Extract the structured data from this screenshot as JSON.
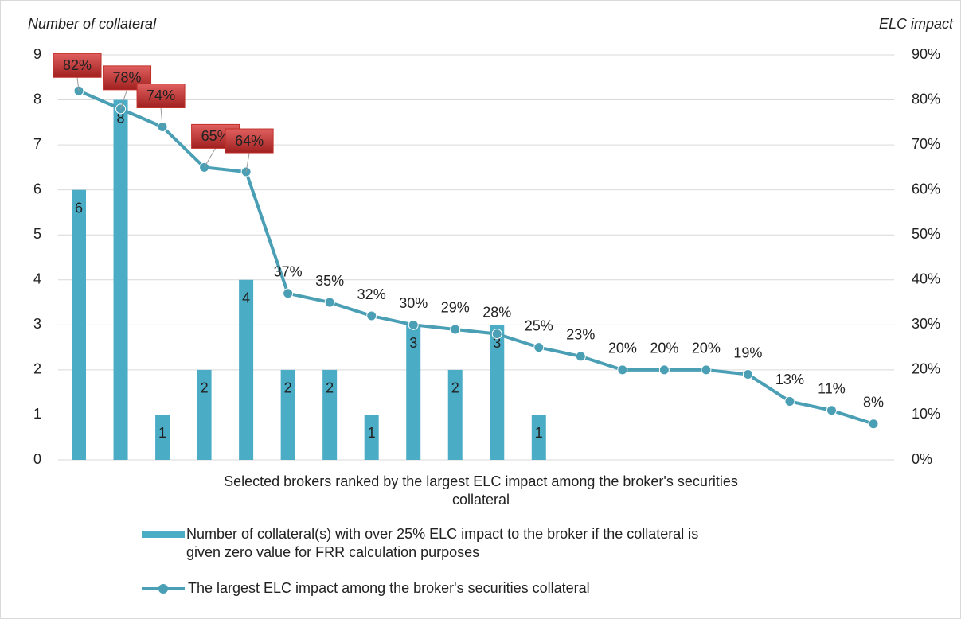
{
  "chart_data": {
    "type": "bar_line",
    "y_label": "Number of collateral",
    "y2_label": "ELC impact",
    "x_label": [
      "Selected brokers ranked by the largest ELC impact among the broker's securities",
      "collateral"
    ],
    "categories": [
      null,
      null,
      null,
      null,
      null,
      null,
      null,
      null,
      null,
      null,
      null,
      null,
      null,
      null,
      null,
      null,
      null,
      null,
      null,
      null
    ],
    "series": [
      {
        "name": [
          "Number of collateral(s) with over 25% ELC impact to the broker if the collateral is",
          "given zero value for FRR calculation purposes"
        ],
        "type": "bar",
        "color": "#4bacc6",
        "values": [
          6,
          8,
          1,
          2,
          4,
          2,
          2,
          1,
          3,
          2,
          3,
          1,
          null,
          null,
          null,
          null,
          null,
          null,
          null,
          null
        ]
      },
      {
        "name": "The largest ELC impact among the broker's securities collateral",
        "type": "line",
        "axis": "y2",
        "color": "#4a9fb5",
        "values": [
          82,
          78,
          74,
          65,
          64,
          37,
          35,
          32,
          30,
          29,
          28,
          25,
          23,
          20,
          20,
          20,
          19,
          13,
          11,
          8
        ],
        "value_labels": [
          "82%",
          "78%",
          "74%",
          "65%",
          "64%",
          "37%",
          "35%",
          "32%",
          "30%",
          "29%",
          "28%",
          "25%",
          "23%",
          "20%",
          "20%",
          "20%",
          "19%",
          "13%",
          "11%",
          "8%"
        ],
        "callouts": [
          true,
          true,
          true,
          true,
          true,
          false,
          false,
          false,
          false,
          false,
          false,
          false,
          false,
          false,
          false,
          false,
          false,
          false,
          false,
          false
        ],
        "callout_color": "#c0302b"
      }
    ],
    "ylim": [
      0,
      9
    ],
    "yticks": [
      0,
      1,
      2,
      3,
      4,
      5,
      6,
      7,
      8,
      9
    ],
    "y2lim": [
      0,
      90
    ],
    "y2ticks": [
      {
        "value": 0,
        "label": "0%"
      },
      {
        "value": 10,
        "label": "10%"
      },
      {
        "value": 20,
        "label": "20%"
      },
      {
        "value": 30,
        "label": "30%"
      },
      {
        "value": 40,
        "label": "40%"
      },
      {
        "value": 50,
        "label": "50%"
      },
      {
        "value": 60,
        "label": "60%"
      },
      {
        "value": 70,
        "label": "70%"
      },
      {
        "value": 80,
        "label": "80%"
      },
      {
        "value": 90,
        "label": "90%"
      }
    ],
    "grid": true,
    "legend": "bottom"
  }
}
